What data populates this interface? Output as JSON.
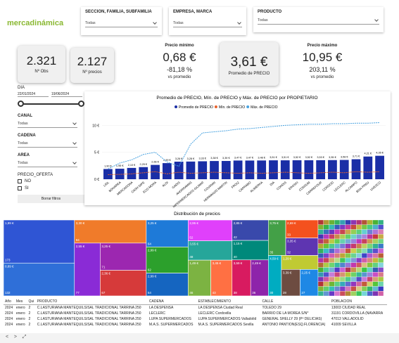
{
  "logo": "mercadinámica",
  "slicers": [
    {
      "label": "SECCION, FAMILIA, SUBFAMILIA",
      "value": "Todas"
    },
    {
      "label": "EMPRESA, MARCA",
      "value": "Todas"
    },
    {
      "label": "PRODUCTO",
      "value": "Todas"
    }
  ],
  "kpis": {
    "obs": {
      "value": "2.321",
      "label": "Nº Obs"
    },
    "precios": {
      "value": "2.127",
      "label": "Nº precios"
    },
    "min": {
      "title": "Precio mínimo",
      "value": "0,68 €",
      "pct": "-81,18 %",
      "note": "vs promedio"
    },
    "avg": {
      "value": "3,61 €",
      "label": "Promedio de PRECIO"
    },
    "max": {
      "title": "Precio máximo",
      "value": "10,95 €",
      "pct": "203,11 %",
      "note": "vs promedio"
    }
  },
  "filters": {
    "dia": {
      "label": "DIA",
      "from": "22/01/2024",
      "to": "19/06/2024"
    },
    "dropdowns": [
      {
        "label": "CANAL",
        "value": "Todas"
      },
      {
        "label": "CADENA",
        "value": "Todas"
      },
      {
        "label": "AREA",
        "value": "Todas"
      }
    ],
    "oferta": {
      "label": "PRECIO_OFERTA",
      "options": [
        "NO",
        "SI"
      ]
    },
    "button": "Borrar filtros"
  },
  "chart_data": [
    {
      "type": "combo",
      "title": "Promedio de PRECIO, Mín. de PRECIO y Máx. de PRECIO por PROPIETARIO",
      "categories": [
        "LIDL",
        "BONAREA",
        "MERCADONA",
        "CASH DIPE",
        "ECO MORA",
        "ALDI",
        "GADIS",
        "AHORRAMAS",
        "HIPERMERCADOS GILMAR",
        "COVIRAN",
        "HERMANOS MARTIN",
        "FROIZ",
        "CAPRABO",
        "ALIMERKA",
        "DIA",
        "CONDIS",
        "EROSKI",
        "CONSUM",
        "CARREFOUR",
        "CORDOD",
        "LECLERC",
        "ALCAMPO",
        "BON PREU",
        "UVESCO"
      ],
      "series": [
        {
          "name": "Promedio de PRECIO",
          "type": "bar",
          "color": "#1a2ea6",
          "values": [
            1.9,
            1.95,
            2.1,
            2.25,
            2.66,
            2.99,
            3.26,
            3.28,
            3.33,
            3.38,
            3.39,
            3.47,
            3.47,
            3.48,
            3.51,
            3.51,
            3.52,
            3.52,
            3.53,
            3.55,
            3.58,
            3.71,
            4.21,
            4.35
          ],
          "value_labels": [
            "1,90 €",
            "1,95 €",
            "2,10 €",
            "2,25 €",
            "2,66 €",
            "2,99 €",
            "3,26 €",
            "3,28 €",
            "3,33 €",
            "3,38 €",
            "3,39 €",
            "3,47 €",
            "3,47 €",
            "3,48 €",
            "3,51 €",
            "3,51 €",
            "3,52 €",
            "3,52 €",
            "3,53 €",
            "3,55 €",
            "3,58 €",
            "3,71 €",
            "4,21 €",
            "4,35 €"
          ]
        },
        {
          "name": "Mín. de PRECIO",
          "type": "line",
          "color": "#e8622c",
          "values": [
            0.85,
            0.9,
            1.0,
            1.2,
            1.4,
            1.0,
            1.3,
            1.1,
            1.2,
            1.3,
            1.2,
            1.1,
            1.2,
            1.1,
            1.2,
            1.3,
            1.2,
            1.1,
            1.2,
            1.3,
            1.2,
            1.4,
            1.3,
            1.4
          ]
        },
        {
          "name": "Máx. de PRECIO",
          "type": "line",
          "color": "#4aa3e0",
          "values": [
            1.9,
            3.0,
            3.6,
            4.6,
            5.0,
            3.2,
            2.4,
            6.5,
            8.6,
            8.8,
            9.0,
            9.3,
            9.4,
            9.6,
            9.8,
            10.0,
            10.1,
            10.2,
            10.2,
            10.3,
            10.3,
            10.4,
            10.4,
            10.5
          ]
        }
      ],
      "ylim": [
        0,
        12
      ],
      "yticks": [
        {
          "value": 0,
          "label": "0 €"
        },
        {
          "value": 5,
          "label": "5 €"
        },
        {
          "value": 10,
          "label": "10 €"
        }
      ],
      "grid": true
    },
    {
      "type": "treemap",
      "title": "Distribución de precios",
      "categories": [
        "1,99 €",
        "0,89 €",
        "3,30 €",
        "2,55 €",
        "3,25 €",
        "2,36 €",
        "3,25 €",
        "2,99 €",
        "2,99 €",
        "2,95 €",
        "3,55 €",
        "1,49 €",
        "3,45 €",
        "2,85 €",
        "1,15 €",
        "3,59 €",
        "2,49 €",
        "3,75 €",
        "2,69 €",
        "3,35 €",
        "4,59 €",
        "1,29 €",
        "3,39 €",
        "2,25 €"
      ],
      "values": [
        173,
        132,
        94,
        77,
        71,
        67,
        64,
        62,
        54,
        52,
        48,
        46,
        43,
        42,
        40,
        38,
        36,
        35,
        33,
        32,
        30,
        29,
        28,
        27
      ],
      "colors": [
        "#2f55d4",
        "#2f6fd8",
        "#f07b2a",
        "#8a2bd6",
        "#9c27b0",
        "#d63a3a",
        "#1e7ad8",
        "#2ca02c",
        "#1565c0",
        "#e040fb",
        "#26a69a",
        "#7cb342",
        "#ff7043",
        "#3949ab",
        "#00897b",
        "#d81b60",
        "#8e24aa",
        "#43a047",
        "#f4511e",
        "#5e35b1",
        "#00acc1",
        "#c0ca33",
        "#6d4c41",
        "#1e88e5"
      ]
    }
  ],
  "table": {
    "columns": [
      "Año",
      "Mes",
      "Qui",
      "PRODUCTO",
      "CADENA",
      "ESTABLECIMIENTO",
      "CALLE",
      "POBLACION"
    ],
    "rows": [
      [
        "2024",
        "enero",
        "2",
        "C.LASTURIANA MANTEQUILS/SAL TRADICIONAL TARRINA 250",
        "LA DESPENSA",
        "LA DESPENSA Ciudad Real",
        "TOLEDO 29",
        "13003 CIUDAD REAL"
      ],
      [
        "2024",
        "enero",
        "2",
        "C.LASTURIANA MANTEQUILS/SAL TRADICIONAL TARRINA 250",
        "LECLERC",
        "LECLERC Cordovilla",
        "BARRIO DE LA MOREA S/N*",
        "31191 CORDOVILLA (NAVARRA"
      ],
      [
        "2024",
        "enero",
        "2",
        "C.LASTURIANA MANTEQUILS/SAL TRADICIONAL TARRINA 250",
        "LUPA SUPERMERCADOS",
        "LUPA SUPERMERCADOS Valladolid",
        "GENERAL SHELLY 29 (Pº DELICIAS)",
        "47013 VALLADOLID"
      ],
      [
        "2024",
        "enero",
        "2",
        "C.LASTURIANA MANTEQUILS/SAL TRADICIONAL TARRINA 250",
        "M.A.S. SUPERMERCADOS",
        "M.A.S. SUPERMERCADOS Sevilla",
        "ANTONIO PANTION(ESQ.FLORENCIA)",
        "41009 SEVILLA"
      ]
    ]
  }
}
